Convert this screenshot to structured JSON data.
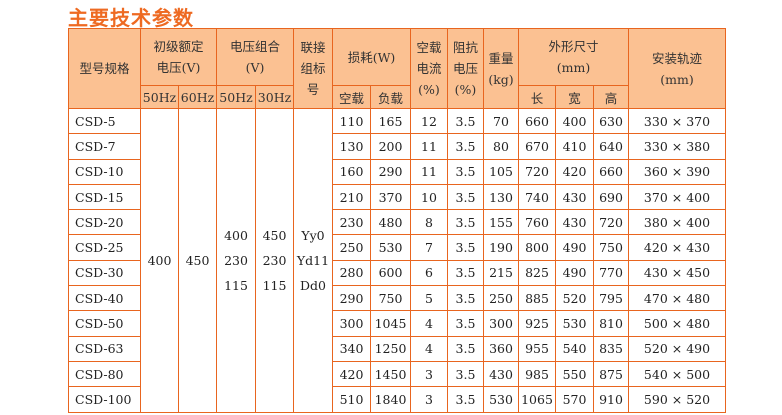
{
  "title": "主要技术参数",
  "headers": {
    "model": "型号规格",
    "primary_voltage": [
      "初级额定",
      "电压(V)"
    ],
    "voltage_combo": [
      "电压组合",
      "(V)"
    ],
    "connection": [
      "联接",
      "组标",
      "号"
    ],
    "loss": "损耗(W)",
    "noload_current": [
      "空载",
      "电流",
      "(%)"
    ],
    "impedance": [
      "阻抗",
      "电压",
      "(%)"
    ],
    "weight": [
      "重量",
      "(kg)"
    ],
    "dimensions": [
      "外形尺寸",
      "(mm)"
    ],
    "track": [
      "安装轨迹",
      "(mm)"
    ],
    "sub": {
      "pv_50": "50Hz",
      "pv_60": "60Hz",
      "vc_50": "50Hz",
      "vc_30": "30Hz",
      "loss_noload": "空载",
      "loss_load": "负载",
      "len": "长",
      "wid": "宽",
      "hei": "高"
    }
  },
  "merged": {
    "pv_50": "400",
    "pv_60": "450",
    "vc_50": [
      "400",
      "230",
      "115"
    ],
    "vc_30": [
      "450",
      "230",
      "115"
    ],
    "connection": [
      "Yy0",
      "Yd11",
      "Dd0"
    ]
  },
  "rows": [
    {
      "model": "CSD-5",
      "p0": "110",
      "pk": "165",
      "i0": "12",
      "uk": "3.5",
      "w": "70",
      "l": "660",
      "b": "400",
      "h": "630",
      "track": "330 × 370"
    },
    {
      "model": "CSD-7",
      "p0": "130",
      "pk": "200",
      "i0": "11",
      "uk": "3.5",
      "w": "80",
      "l": "670",
      "b": "410",
      "h": "640",
      "track": "330 × 380"
    },
    {
      "model": "CSD-10",
      "p0": "160",
      "pk": "290",
      "i0": "11",
      "uk": "3.5",
      "w": "105",
      "l": "720",
      "b": "420",
      "h": "660",
      "track": "360 × 390"
    },
    {
      "model": "CSD-15",
      "p0": "210",
      "pk": "370",
      "i0": "10",
      "uk": "3.5",
      "w": "130",
      "l": "740",
      "b": "430",
      "h": "690",
      "track": "370 × 400"
    },
    {
      "model": "CSD-20",
      "p0": "230",
      "pk": "480",
      "i0": "8",
      "uk": "3.5",
      "w": "155",
      "l": "760",
      "b": "430",
      "h": "720",
      "track": "380 × 400"
    },
    {
      "model": "CSD-25",
      "p0": "250",
      "pk": "530",
      "i0": "7",
      "uk": "3.5",
      "w": "190",
      "l": "800",
      "b": "490",
      "h": "750",
      "track": "420 × 430"
    },
    {
      "model": "CSD-30",
      "p0": "280",
      "pk": "600",
      "i0": "6",
      "uk": "3.5",
      "w": "215",
      "l": "825",
      "b": "490",
      "h": "770",
      "track": "430 × 450"
    },
    {
      "model": "CSD-40",
      "p0": "290",
      "pk": "750",
      "i0": "5",
      "uk": "3.5",
      "w": "250",
      "l": "885",
      "b": "520",
      "h": "795",
      "track": "470 × 480"
    },
    {
      "model": "CSD-50",
      "p0": "300",
      "pk": "1045",
      "i0": "4",
      "uk": "3.5",
      "w": "300",
      "l": "925",
      "b": "530",
      "h": "810",
      "track": "500 × 480"
    },
    {
      "model": "CSD-63",
      "p0": "340",
      "pk": "1250",
      "i0": "4",
      "uk": "3.5",
      "w": "360",
      "l": "955",
      "b": "540",
      "h": "835",
      "track": "520 × 490"
    },
    {
      "model": "CSD-80",
      "p0": "420",
      "pk": "1450",
      "i0": "3",
      "uk": "3.5",
      "w": "430",
      "l": "985",
      "b": "550",
      "h": "875",
      "track": "540 × 500"
    },
    {
      "model": "CSD-100",
      "p0": "510",
      "pk": "1840",
      "i0": "3",
      "uk": "3.5",
      "w": "530",
      "l": "1065",
      "b": "570",
      "h": "910",
      "track": "590 × 520"
    }
  ],
  "colors": {
    "accent": "#EE6A22",
    "header_bg": "#FBC192",
    "border": "#E8651F"
  }
}
